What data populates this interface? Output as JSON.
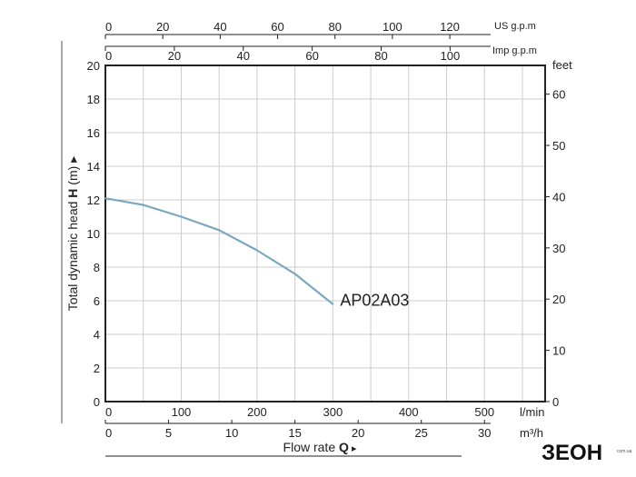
{
  "chart_data": {
    "type": "line",
    "series": [
      {
        "name": "AP02A03",
        "x": [
          0,
          50,
          100,
          150,
          200,
          250,
          300
        ],
        "y": [
          12.1,
          11.7,
          11.0,
          10.2,
          9.0,
          7.6,
          5.8
        ]
      }
    ],
    "xlabel": "Flow rate Q",
    "xlim": [
      0,
      580
    ],
    "x_unit": "l/min",
    "ylabel": "Total dynamic head H (m)",
    "ylim": [
      0,
      20
    ],
    "grid": true,
    "x_ticks": [
      0,
      100,
      200,
      300,
      400,
      500
    ],
    "y_ticks": [
      0,
      2,
      4,
      6,
      8,
      10,
      12,
      14,
      16,
      18,
      20
    ],
    "secondary_axes": {
      "m3h": {
        "unit": "m³/h",
        "ticks": [
          0,
          5,
          10,
          15,
          20,
          25,
          30
        ]
      },
      "feet": {
        "unit": "feet",
        "ticks": [
          0,
          10,
          20,
          30,
          40,
          50,
          60
        ]
      },
      "imp_gpm": {
        "unit": "Imp g.p.m",
        "ticks": [
          0,
          20,
          40,
          60,
          80,
          100
        ]
      },
      "us_gpm": {
        "unit": "US g.p.m",
        "ticks": [
          0,
          20,
          40,
          60,
          80,
          100,
          120
        ]
      }
    }
  },
  "labels": {
    "ylabel_prefix": "Total dynamic head ",
    "ylabel_bold": "H",
    "ylabel_suffix": " (m)",
    "xlabel_prefix": "Flow rate ",
    "xlabel_bold": "Q",
    "arrow": "▸"
  },
  "logo": {
    "text": "ЗЕОН",
    "sub": "com.ua"
  },
  "colors": {
    "curve": "#7ba7bf",
    "grid": "#cccccc",
    "axis": "#222222"
  }
}
